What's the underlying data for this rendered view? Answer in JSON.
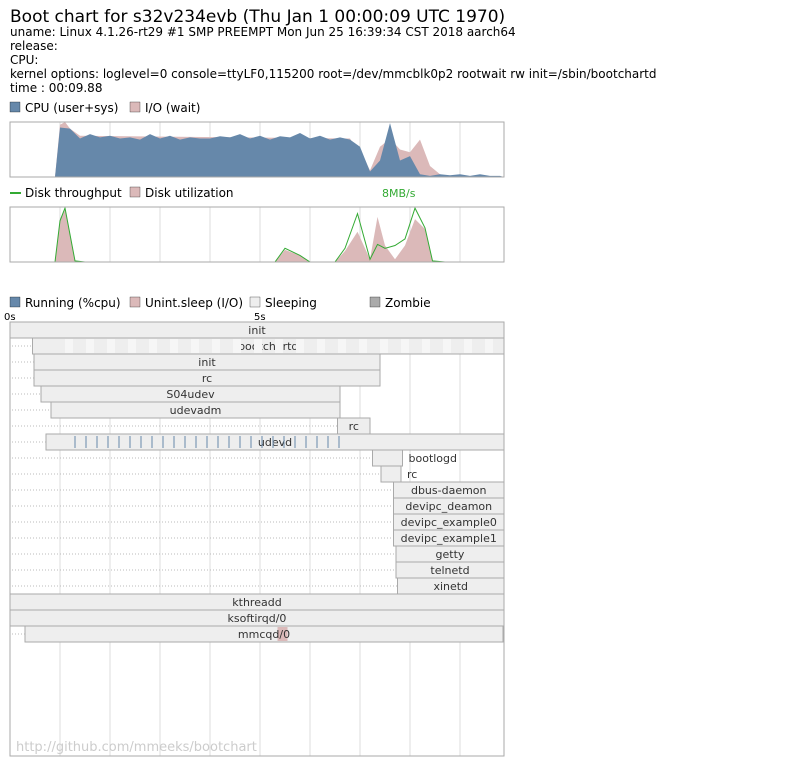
{
  "header": {
    "title": "Boot chart for s32v234evb (Thu Jan  1 00:00:09 UTC 1970)",
    "uname": "uname: Linux 4.1.26-rt29 #1 SMP PREEMPT Mon Jun 25 16:39:34 CST 2018 aarch64",
    "release": "release:",
    "cpu": "CPU:",
    "kernel_options": "kernel options: loglevel=0 console=ttyLF0,115200 root=/dev/mmcblk0p2 rootwait rw init=/sbin/bootchartd",
    "time": "time : 00:09.88"
  },
  "colors": {
    "cpu": "#6688aa",
    "io": "#dbb9b9",
    "disk_throughput": "#33aa33",
    "sleeping": "#eeeeee",
    "zombie": "#aaaaaa",
    "border": "#aaaaaa"
  },
  "cpu_legend": {
    "cpu": "CPU (user+sys)",
    "io": "I/O (wait)"
  },
  "disk_legend": {
    "throughput": "Disk throughput",
    "utilization": "Disk utilization",
    "max_label": "8MB/s"
  },
  "process_legend": {
    "running": "Running (%cpu)",
    "unint": "Unint.sleep (I/O)",
    "sleeping": "Sleeping",
    "zombie": "Zombie"
  },
  "footer": {
    "source": "http://github.com/mmeeks/bootchart"
  },
  "chart_data": [
    {
      "type": "area",
      "name": "cpu-io-chart",
      "xlim": [
        0,
        9.88
      ],
      "ylim": [
        0,
        1
      ],
      "series": [
        {
          "name": "CPU (user+sys)",
          "key": "cpu",
          "x": [
            0.9,
            1.0,
            1.2,
            1.4,
            1.6,
            1.8,
            2.0,
            2.2,
            2.4,
            2.6,
            2.8,
            3.0,
            3.2,
            3.4,
            3.6,
            3.8,
            4.0,
            4.2,
            4.4,
            4.6,
            4.8,
            5.0,
            5.2,
            5.4,
            5.6,
            5.8,
            6.0,
            6.2,
            6.4,
            6.6,
            6.8,
            7.0,
            7.2,
            7.4,
            7.6,
            7.8,
            8.0,
            8.2,
            8.4,
            8.6,
            8.8,
            9.0,
            9.2,
            9.4,
            9.6,
            9.8,
            9.88
          ],
          "values": [
            0,
            0.9,
            0.88,
            0.7,
            0.78,
            0.72,
            0.75,
            0.7,
            0.72,
            0.68,
            0.78,
            0.7,
            0.75,
            0.68,
            0.72,
            0.7,
            0.7,
            0.74,
            0.72,
            0.78,
            0.7,
            0.75,
            0.68,
            0.74,
            0.72,
            0.8,
            0.7,
            0.75,
            0.68,
            0.72,
            0.68,
            0.55,
            0.1,
            0.3,
            0.98,
            0.3,
            0.38,
            0.05,
            0.02,
            0.05,
            0.03,
            0.05,
            0.02,
            0.05,
            0.02,
            0.02,
            0
          ]
        },
        {
          "name": "I/O (wait)",
          "key": "io",
          "x": [
            0.9,
            1.0,
            1.1,
            1.2,
            1.4,
            6.8,
            6.9,
            7.0,
            7.2,
            7.4,
            7.6,
            7.8,
            8.0,
            8.2,
            8.4,
            8.6,
            8.8
          ],
          "values": [
            0,
            0.95,
            1.0,
            0.88,
            0.75,
            0.7,
            0.55,
            0.5,
            0.12,
            0.55,
            0.7,
            0.5,
            0.45,
            0.68,
            0.2,
            0.05,
            0
          ]
        }
      ]
    },
    {
      "type": "area",
      "name": "disk-chart",
      "xlim": [
        0,
        9.88
      ],
      "ylim": [
        0,
        1
      ],
      "series": [
        {
          "name": "Disk throughput",
          "key": "throughput",
          "x": [
            0.9,
            1.0,
            1.1,
            1.3,
            1.5,
            5.3,
            5.5,
            5.8,
            6.0,
            6.5,
            6.7,
            6.95,
            7.2,
            7.35,
            7.5,
            7.7,
            7.9,
            8.1,
            8.3,
            8.45,
            8.7,
            9.88
          ],
          "values": [
            0,
            0.75,
            0.98,
            0.02,
            0,
            0,
            0.25,
            0.12,
            0,
            0,
            0.25,
            0.88,
            0.05,
            0.32,
            0.25,
            0.3,
            0.42,
            0.98,
            0.62,
            0.02,
            0,
            0
          ]
        },
        {
          "name": "Disk utilization",
          "key": "utilization",
          "x": [
            0.9,
            1.0,
            1.1,
            1.3,
            1.5,
            5.3,
            5.5,
            5.8,
            6.0,
            6.5,
            6.7,
            6.95,
            7.2,
            7.35,
            7.5,
            7.7,
            7.9,
            8.1,
            8.3,
            8.45,
            8.7,
            9.88
          ],
          "values": [
            0,
            0.75,
            0.95,
            0,
            0,
            0,
            0.22,
            0.12,
            0,
            0,
            0.2,
            0.55,
            0.05,
            0.82,
            0.3,
            0.05,
            0.3,
            0.78,
            0.6,
            0,
            0,
            0
          ]
        }
      ]
    },
    {
      "type": "table",
      "name": "process-chart",
      "xlim": [
        0,
        9.88
      ],
      "tick_labels": [
        "0s",
        "5s"
      ],
      "processes": [
        {
          "name": "init",
          "start": 0.0,
          "end": 9.88,
          "io": []
        },
        {
          "name": "bootchartd",
          "start": 0.45,
          "end": 9.88,
          "io": []
        },
        {
          "name": "init",
          "start": 0.48,
          "end": 7.4,
          "io": []
        },
        {
          "name": "rc",
          "start": 0.48,
          "end": 7.4,
          "io": []
        },
        {
          "name": "S04udev",
          "start": 0.62,
          "end": 6.6,
          "io": []
        },
        {
          "name": "udevadm",
          "start": 0.82,
          "end": 6.6,
          "io": []
        },
        {
          "name": "rc",
          "start": 6.55,
          "end": 7.2,
          "io": []
        },
        {
          "name": "udevd",
          "start": 0.72,
          "end": 9.88,
          "io": []
        },
        {
          "name": "bootlogd",
          "start": 7.25,
          "end": 7.85,
          "io": []
        },
        {
          "name": "rc",
          "start": 7.42,
          "end": 7.82,
          "io": []
        },
        {
          "name": "dbus-daemon",
          "start": 7.67,
          "end": 9.88,
          "io": []
        },
        {
          "name": "devipc_deamon",
          "start": 7.67,
          "end": 9.88,
          "io": []
        },
        {
          "name": "devipc_example0",
          "start": 7.67,
          "end": 9.88,
          "io": []
        },
        {
          "name": "devipc_example1",
          "start": 7.67,
          "end": 9.88,
          "io": []
        },
        {
          "name": "getty",
          "start": 7.72,
          "end": 9.88,
          "io": []
        },
        {
          "name": "telnetd",
          "start": 7.72,
          "end": 9.88,
          "io": []
        },
        {
          "name": "xinetd",
          "start": 7.75,
          "end": 9.88,
          "io": []
        },
        {
          "name": "kthreadd",
          "start": 0.0,
          "end": 9.88,
          "io": []
        },
        {
          "name": "ksoftirqd/0",
          "start": 0.0,
          "end": 9.88,
          "io": []
        },
        {
          "name": "mmcqd/0",
          "start": 0.3,
          "end": 9.86,
          "io": [
            [
              5.35,
              5.55
            ]
          ]
        }
      ]
    }
  ]
}
